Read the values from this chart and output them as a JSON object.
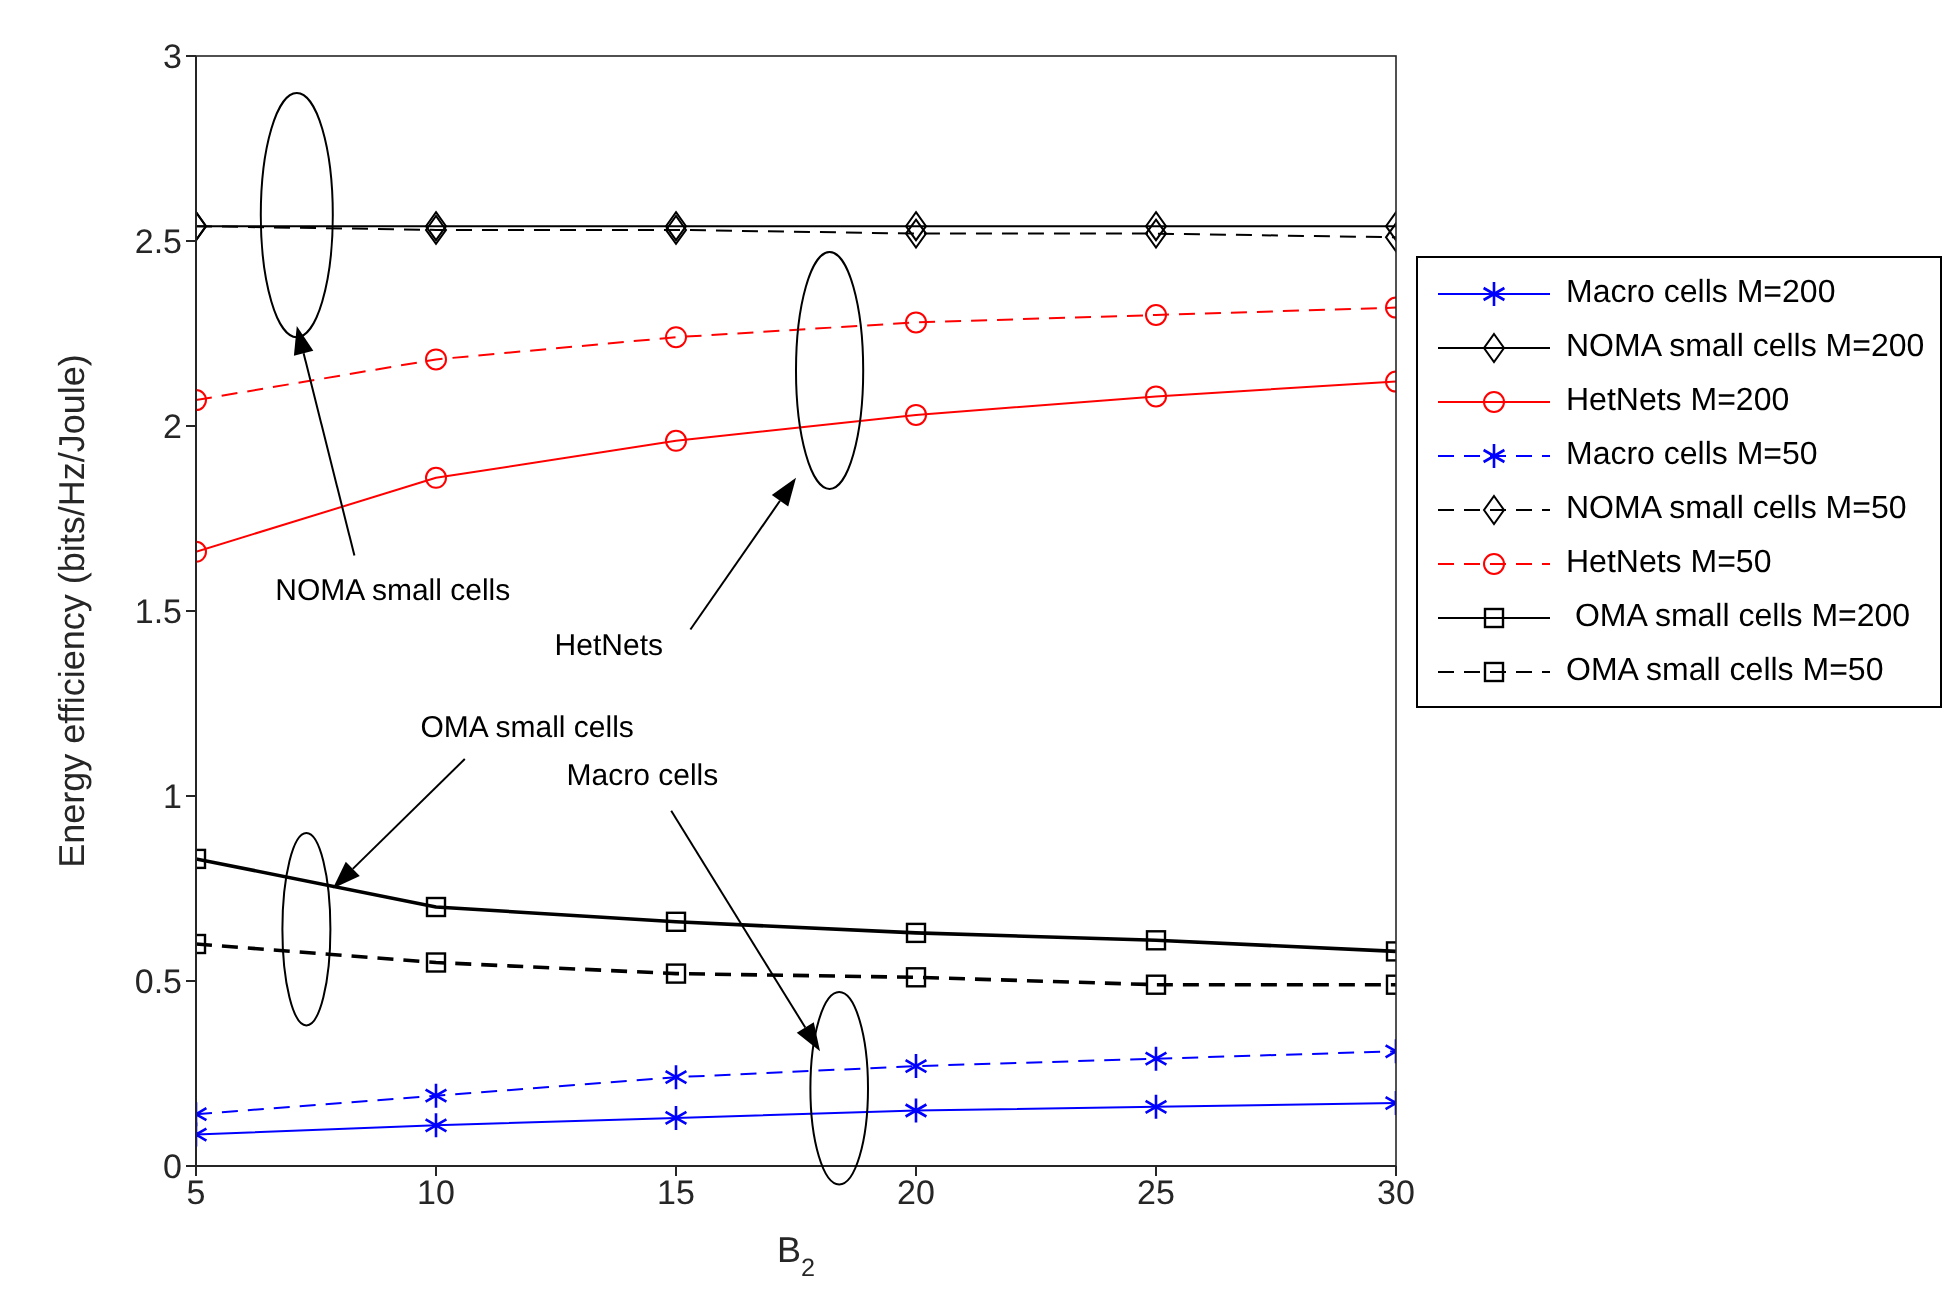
{
  "chart_data": {
    "type": "line",
    "xlabel": "B$_{2}$",
    "ylabel": "Energy efficiency (bits/Hz/Joule)",
    "x": [
      5,
      10,
      15,
      20,
      25,
      30
    ],
    "xlim": [
      5,
      30
    ],
    "xticks": [
      5,
      10,
      15,
      20,
      25,
      30
    ],
    "ylim": [
      0,
      3
    ],
    "yticks": [
      0,
      0.5,
      1,
      1.5,
      2,
      2.5,
      3
    ],
    "grid": false,
    "legend": "right",
    "series": [
      {
        "name": "Macro cells M=200",
        "color": "#0000ff",
        "marker": "cross",
        "line_style": "solid",
        "values": [
          0.085,
          0.11,
          0.13,
          0.15,
          0.16,
          0.17
        ]
      },
      {
        "name": "NOMA small cells M=200",
        "color": "#000000",
        "marker": "diamond",
        "line_style": "solid",
        "values": [
          2.54,
          2.54,
          2.54,
          2.54,
          2.54,
          2.54
        ]
      },
      {
        "name": "HetNets M=200",
        "color": "#ff0000",
        "marker": "circle",
        "line_style": "solid",
        "values": [
          1.66,
          1.86,
          1.96,
          2.03,
          2.08,
          2.12
        ]
      },
      {
        "name": "Macro cells M=50",
        "color": "#0000ff",
        "marker": "cross",
        "line_style": "dashed",
        "values": [
          0.14,
          0.19,
          0.24,
          0.27,
          0.29,
          0.31
        ]
      },
      {
        "name": "NOMA small cells M=50",
        "color": "#000000",
        "marker": "diamond",
        "line_style": "dashed",
        "values": [
          2.54,
          2.53,
          2.53,
          2.52,
          2.52,
          2.51
        ]
      },
      {
        "name": "HetNets M=50",
        "color": "#ff0000",
        "marker": "circle",
        "line_style": "dashed",
        "values": [
          2.07,
          2.18,
          2.24,
          2.28,
          2.3,
          2.32
        ]
      },
      {
        "name": " OMA small cells M=200",
        "color": "#000000",
        "marker": "square",
        "line_style": "solid",
        "values": [
          0.83,
          0.7,
          0.66,
          0.63,
          0.61,
          0.58
        ]
      },
      {
        "name": "OMA small cells M=50",
        "color": "#000000",
        "marker": "square",
        "line_style": "dashed",
        "values": [
          0.6,
          0.55,
          0.52,
          0.51,
          0.49,
          0.49
        ]
      }
    ],
    "annotations": [
      "NOMA small cells",
      "HetNets",
      "OMA small cells",
      "Macro cells"
    ]
  }
}
